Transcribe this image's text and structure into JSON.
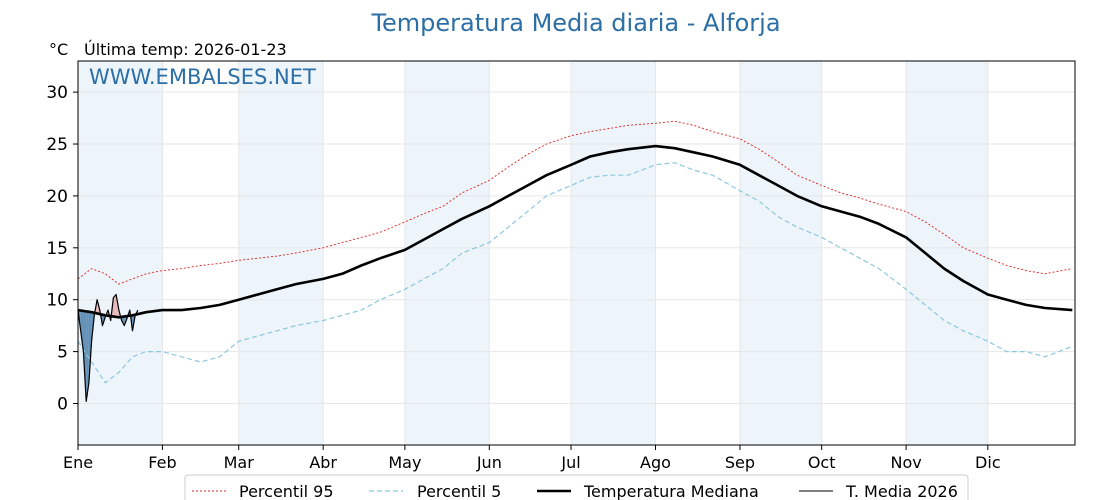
{
  "chart_data": {
    "type": "line",
    "title": "Temperatura Media diaria - Alforja",
    "unit_label": "°C",
    "last_temp_label": "Última temp: 2026-01-23",
    "watermark": "WWW.EMBALSES.NET",
    "ylim": [
      -4,
      33
    ],
    "yticks": [
      0,
      5,
      10,
      15,
      20,
      25,
      30
    ],
    "month_labels": [
      "Ene",
      "Feb",
      "Mar",
      "Abr",
      "May",
      "Jun",
      "Jul",
      "Ago",
      "Sep",
      "Oct",
      "Nov",
      "Dic"
    ],
    "month_start_days": [
      0,
      31,
      59,
      90,
      120,
      151,
      181,
      212,
      243,
      273,
      304,
      334
    ],
    "days_in_year": 366,
    "grid": true,
    "legend_position": "bottom",
    "colors": {
      "title": "#2c6fa6",
      "p95": "#e02020",
      "p5": "#8cc8dc",
      "median": "#000000",
      "current": "#000000",
      "band": "#dbe9f5",
      "fill_below": "#4a7fab",
      "fill_above": "#e8a0a0"
    },
    "series": [
      {
        "name": "Percentil 95",
        "key": "p95",
        "x": [
          0,
          5,
          10,
          15,
          20,
          25,
          31,
          38,
          45,
          52,
          59,
          66,
          73,
          80,
          90,
          97,
          104,
          111,
          120,
          127,
          134,
          141,
          151,
          158,
          165,
          172,
          181,
          188,
          195,
          202,
          212,
          219,
          226,
          233,
          243,
          250,
          257,
          264,
          273,
          280,
          287,
          294,
          304,
          311,
          318,
          325,
          334,
          341,
          348,
          355,
          365
        ],
        "y": [
          12,
          13,
          12.5,
          11.5,
          12,
          12.5,
          12.8,
          13,
          13.3,
          13.5,
          13.8,
          14,
          14.2,
          14.5,
          15,
          15.5,
          16,
          16.5,
          17.5,
          18.3,
          19,
          20.3,
          21.5,
          22.8,
          24,
          25,
          25.8,
          26.2,
          26.5,
          26.8,
          27,
          27.2,
          26.8,
          26.2,
          25.5,
          24.5,
          23.3,
          22,
          21,
          20.3,
          19.8,
          19.2,
          18.5,
          17.5,
          16.3,
          15,
          14,
          13.3,
          12.8,
          12.5,
          13
        ]
      },
      {
        "name": "Percentil 5",
        "key": "p5",
        "x": [
          0,
          5,
          10,
          15,
          20,
          25,
          31,
          38,
          45,
          52,
          59,
          66,
          73,
          80,
          90,
          97,
          104,
          111,
          120,
          127,
          134,
          141,
          151,
          158,
          165,
          172,
          181,
          188,
          195,
          202,
          212,
          219,
          226,
          233,
          243,
          250,
          257,
          264,
          273,
          280,
          287,
          294,
          304,
          311,
          318,
          325,
          334,
          341,
          348,
          355,
          365
        ],
        "y": [
          6,
          4,
          2,
          3,
          4.5,
          5,
          5,
          4.5,
          4,
          4.5,
          6,
          6.5,
          7,
          7.5,
          8,
          8.5,
          9,
          10,
          11,
          12,
          13,
          14.5,
          15.5,
          17,
          18.5,
          20,
          21,
          21.8,
          22,
          22,
          23,
          23.2,
          22.5,
          22,
          20.5,
          19.5,
          18,
          17,
          16,
          15,
          14,
          13,
          11,
          9.5,
          8,
          7,
          6,
          5,
          5,
          4.5,
          5.5
        ]
      },
      {
        "name": "Temperatura Mediana",
        "key": "median",
        "x": [
          0,
          5,
          10,
          15,
          20,
          25,
          31,
          38,
          45,
          52,
          59,
          66,
          73,
          80,
          90,
          97,
          104,
          111,
          120,
          127,
          134,
          141,
          151,
          158,
          165,
          172,
          181,
          188,
          195,
          202,
          212,
          219,
          226,
          233,
          243,
          250,
          257,
          264,
          273,
          280,
          287,
          294,
          304,
          311,
          318,
          325,
          334,
          341,
          348,
          355,
          365
        ],
        "y": [
          9,
          8.8,
          8.5,
          8.3,
          8.5,
          8.8,
          9,
          9,
          9.2,
          9.5,
          10,
          10.5,
          11,
          11.5,
          12,
          12.5,
          13.3,
          14,
          14.8,
          15.8,
          16.8,
          17.8,
          19,
          20,
          21,
          22,
          23,
          23.8,
          24.2,
          24.5,
          24.8,
          24.6,
          24.2,
          23.8,
          23,
          22,
          21,
          20,
          19,
          18.5,
          18,
          17.3,
          16,
          14.5,
          13,
          11.8,
          10.5,
          10,
          9.5,
          9.2,
          9
        ]
      },
      {
        "name": "T. Media 2026",
        "key": "current",
        "x": [
          0,
          1,
          2,
          3,
          4,
          5,
          6,
          7,
          8,
          9,
          10,
          11,
          12,
          13,
          14,
          15,
          16,
          17,
          18,
          19,
          20,
          21,
          22
        ],
        "y": [
          9,
          7,
          5,
          0.2,
          2,
          6,
          8.5,
          10,
          9,
          7.5,
          8.3,
          9,
          8,
          10.2,
          10.5,
          9,
          8,
          7.5,
          8.2,
          9,
          7,
          8.5,
          9
        ]
      }
    ]
  },
  "legend": [
    {
      "label": "Percentil 95",
      "key": "p95"
    },
    {
      "label": "Percentil 5",
      "key": "p5"
    },
    {
      "label": "Temperatura Mediana",
      "key": "median"
    },
    {
      "label": "T. Media 2026",
      "key": "current"
    }
  ]
}
